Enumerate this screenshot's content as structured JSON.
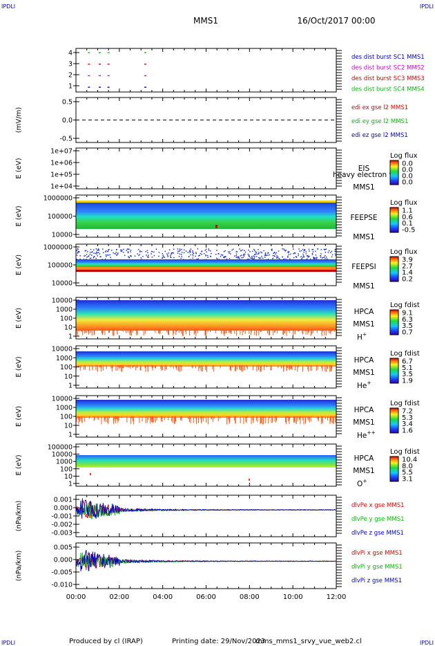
{
  "corner_labels": {
    "top_left": "IPDLI",
    "top_right": "IPDLI",
    "bottom_left": "IPDLI",
    "bottom_right": "IPDLI"
  },
  "header": {
    "mission": "MMS1",
    "date": "16/Oct/2017 00:00"
  },
  "footer": {
    "produced_by": "Produced by cl (IRAP)",
    "printing_date": "Printing date: 29/Nov/2023",
    "script": "mms_mms1_srvy_vue_web2.cl"
  },
  "colors": {
    "blue": "#0000d0",
    "red": "#e00000",
    "green": "#00c000",
    "magenta": "#d000d0",
    "axis": "#000000"
  },
  "chart_data": [
    {
      "id": "burst",
      "type": "scatter",
      "yticks": [
        "4",
        "3",
        "2",
        "1"
      ],
      "ylabel": "",
      "legend": [
        {
          "name": "des dist burst SC1 MMS1",
          "color": "#0000d0"
        },
        {
          "name": "des dist burst SC2 MMS2",
          "color": "#d000d0"
        },
        {
          "name": "des dist burst SC3 MMS3",
          "color": "#e00000"
        },
        {
          "name": "des dist burst SC4 MMS4",
          "color": "#00c000"
        }
      ],
      "series": [
        {
          "name": "des dist burst SC4 MMS4",
          "level": 4,
          "color": "#00c000",
          "x": [
            0.6,
            1.1,
            1.5,
            3.2
          ]
        },
        {
          "name": "des dist burst SC3 MMS3",
          "level": 3,
          "color": "#e00000",
          "x": [
            0.6,
            1.1,
            1.5,
            3.2
          ]
        },
        {
          "name": "des dist burst SC2 MMS2",
          "level": 2,
          "color": "#d000d0",
          "x": [
            0.6,
            1.1,
            1.5,
            3.2
          ]
        },
        {
          "name": "des dist burst SC1 MMS1",
          "level": 1,
          "color": "#0000d0",
          "x": [
            0.6,
            1.1,
            1.5,
            3.2
          ]
        }
      ]
    },
    {
      "id": "edi",
      "type": "line",
      "ylabel": "(mV/m)",
      "yticks": [
        "0.5",
        "0.0",
        "-0.5"
      ],
      "ylim": [
        -0.8,
        0.8
      ],
      "legend": [
        {
          "name": "edi ex gse l2 MMS1",
          "color": "#e00000"
        },
        {
          "name": "edi ey gse l2 MMS1",
          "color": "#00c000"
        },
        {
          "name": "edi ez gse l2 MMS1",
          "color": "#0000d0"
        }
      ]
    },
    {
      "id": "eis",
      "type": "heatmap",
      "ylabel": "E (eV)",
      "yticks": [
        "1e+07",
        "1e+06",
        "1e+05",
        "1e+04"
      ],
      "side_labels": [
        "EIS",
        "MMS1"
      ],
      "overlay_text": "heavy electron to",
      "colorbar": {
        "title": "Log flux",
        "ticks": [
          "0.0",
          "0.0",
          "0.0",
          "0.0"
        ]
      }
    },
    {
      "id": "feepse",
      "type": "heatmap",
      "ylabel": "E (eV)",
      "yticks": [
        "1000000",
        "100000",
        "10000"
      ],
      "side_labels": [
        "FEEPSE",
        "MMS1"
      ],
      "colorbar": {
        "title": "Log flux",
        "ticks": [
          "1.1",
          "0.6",
          "0.1",
          "-0.5"
        ]
      }
    },
    {
      "id": "feepsi",
      "type": "heatmap",
      "ylabel": "E (eV)",
      "yticks": [
        "1000000",
        "100000",
        "10000"
      ],
      "side_labels": [
        "FEEPSI",
        "MMS1"
      ],
      "colorbar": {
        "title": "Log flux",
        "ticks": [
          "3.9",
          "2.7",
          "1.4",
          "0.2"
        ]
      }
    },
    {
      "id": "hpca_h",
      "type": "heatmap",
      "ylabel": "E (eV)",
      "yticks": [
        "10000",
        "1000",
        "100",
        "10",
        "1"
      ],
      "side_labels": [
        "HPCA",
        "MMS1"
      ],
      "species": "H",
      "species_sup": "+",
      "colorbar": {
        "title": "Log fdist",
        "ticks": [
          "9.1",
          "6.3",
          "3.5",
          "0.7"
        ]
      }
    },
    {
      "id": "hpca_he",
      "type": "heatmap",
      "ylabel": "E (eV)",
      "yticks": [
        "10000",
        "1000",
        "100",
        "10",
        "1"
      ],
      "side_labels": [
        "HPCA",
        "MMS1"
      ],
      "species": "He",
      "species_sup": "+",
      "colorbar": {
        "title": "Log fdist",
        "ticks": [
          "6.7",
          "5.1",
          "3.5",
          "1.9"
        ]
      }
    },
    {
      "id": "hpca_hepp",
      "type": "heatmap",
      "ylabel": "E (eV)",
      "yticks": [
        "10000",
        "1000",
        "100",
        "10",
        "1"
      ],
      "side_labels": [
        "HPCA",
        "MMS1"
      ],
      "species": "He",
      "species_sup": "++",
      "colorbar": {
        "title": "Log fdist",
        "ticks": [
          "7.2",
          "5.3",
          "3.4",
          "1.6"
        ]
      }
    },
    {
      "id": "hpca_o",
      "type": "heatmap",
      "ylabel": "E (eV)",
      "yticks": [
        "100000",
        "10000",
        "1000",
        "100",
        "10",
        "1"
      ],
      "side_labels": [
        "HPCA",
        "MMS1"
      ],
      "species": "O",
      "species_sup": "+",
      "colorbar": {
        "title": "Log fdist",
        "ticks": [
          "10.4",
          "8.0",
          "5.5",
          "3.1"
        ]
      }
    },
    {
      "id": "dlvpe",
      "type": "line",
      "ylabel": "(nPa/km)",
      "yticks": [
        "0.001",
        "0.000",
        "-0.001",
        "-0.002",
        "-0.003"
      ],
      "ylim": [
        -0.0033,
        0.0018
      ],
      "legend": [
        {
          "name": "dlvPe x gse MMS1",
          "color": "#e00000"
        },
        {
          "name": "dlvPe y gse MMS1",
          "color": "#00c000"
        },
        {
          "name": "dlvPe z gse MMS1",
          "color": "#0000d0"
        }
      ]
    },
    {
      "id": "dlvpi",
      "type": "line",
      "ylabel": "(nPa/km)",
      "yticks": [
        "0.005",
        "0.000",
        "-0.005",
        "-0.010"
      ],
      "ylim": [
        -0.012,
        0.008
      ],
      "legend": [
        {
          "name": "dlvPi x gse MMS1",
          "color": "#e00000"
        },
        {
          "name": "dlvPi y gse MMS1",
          "color": "#00c000"
        },
        {
          "name": "dlvPi z gse MMS1",
          "color": "#0000d0"
        }
      ]
    }
  ],
  "xaxis": {
    "ticks": [
      "00:00",
      "02:00",
      "04:00",
      "06:00",
      "08:00",
      "10:00",
      "12:00"
    ],
    "xlim_hours": [
      0,
      12
    ]
  }
}
